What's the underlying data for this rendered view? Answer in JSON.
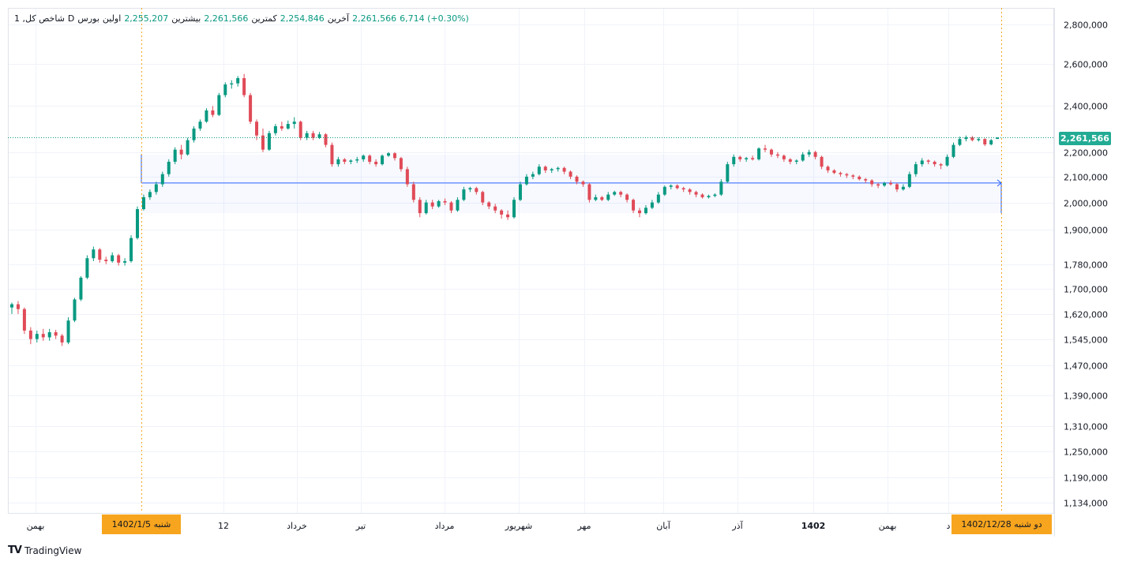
{
  "legend": {
    "symbol": "1 ,شاخص کل",
    "interval": "D",
    "exchange": "بورس",
    "open_label": "اولین",
    "open": "2,255,207",
    "high_label": "بیشترین",
    "high": "2,261,566",
    "low_label": "کمترین",
    "low": "2,254,846",
    "close_label": "آخرین",
    "close": "2,261,566",
    "change": "6,714 (+0.30%)"
  },
  "colors": {
    "up": "#089981",
    "down": "#e04a57",
    "measure": "#2962ff",
    "badge_price": "#22ab94",
    "badge_date": "#f7a51e"
  },
  "last_price_label": "2,261,566",
  "range_start_badge": "1402/1/5  شنبه",
  "range_end_badge": "1402/12/28  دو شنبه",
  "brand": "TradingView",
  "chart_data": {
    "type": "candlestick",
    "y_scale": "log",
    "ylim": [
      1080000,
      2880000
    ],
    "y_ticks": [
      2800000,
      2600000,
      2400000,
      2200000,
      2100000,
      2000000,
      1900000,
      1780000,
      1700000,
      1620000,
      1545000,
      1470000,
      1390000,
      1310000,
      1250000,
      1190000,
      1134000
    ],
    "y_tick_labels": [
      "2,800,000",
      "2,600,000",
      "2,400,000",
      "2,200,000",
      "2,100,000",
      "2,000,000",
      "1,900,000",
      "1,780,000",
      "1,700,000",
      "1,620,000",
      "1,545,000",
      "1,470,000",
      "1,390,000",
      "1,310,000",
      "1,250,000",
      "1,190,000",
      "1,134,000"
    ],
    "x_labels": [
      "بهمن",
      "12",
      "خرداد",
      "تیر",
      "مرداد",
      "شهریور",
      "مهر",
      "آبان",
      "آذر",
      "1402",
      "بهمن",
      "د"
    ],
    "last_price": 2261566,
    "measure_range": {
      "start": "1402/1/5",
      "end": "1402/12/28",
      "level": 2075000,
      "band_top": 2190000,
      "band_bottom": 1960000
    },
    "series": [
      [
        1640000,
        1655000,
        1620000,
        1650000
      ],
      [
        1650000,
        1660000,
        1620000,
        1635000
      ],
      [
        1635000,
        1640000,
        1560000,
        1570000
      ],
      [
        1570000,
        1580000,
        1530000,
        1545000
      ],
      [
        1545000,
        1570000,
        1535000,
        1560000
      ],
      [
        1560000,
        1575000,
        1540000,
        1550000
      ],
      [
        1550000,
        1575000,
        1540000,
        1565000
      ],
      [
        1565000,
        1572000,
        1545000,
        1555000
      ],
      [
        1555000,
        1560000,
        1525000,
        1535000
      ],
      [
        1535000,
        1610000,
        1530000,
        1600000
      ],
      [
        1600000,
        1670000,
        1595000,
        1665000
      ],
      [
        1665000,
        1740000,
        1660000,
        1735000
      ],
      [
        1735000,
        1810000,
        1730000,
        1800000
      ],
      [
        1800000,
        1840000,
        1790000,
        1830000
      ],
      [
        1830000,
        1835000,
        1785000,
        1795000
      ],
      [
        1795000,
        1805000,
        1780000,
        1790000
      ],
      [
        1790000,
        1820000,
        1785000,
        1810000
      ],
      [
        1810000,
        1815000,
        1775000,
        1785000
      ],
      [
        1785000,
        1800000,
        1775000,
        1790000
      ],
      [
        1790000,
        1880000,
        1785000,
        1870000
      ],
      [
        1870000,
        1985000,
        1865000,
        1975000
      ],
      [
        1975000,
        2030000,
        1970000,
        2020000
      ],
      [
        2020000,
        2050000,
        2010000,
        2040000
      ],
      [
        2040000,
        2080000,
        2030000,
        2070000
      ],
      [
        2070000,
        2120000,
        2060000,
        2110000
      ],
      [
        2110000,
        2170000,
        2100000,
        2160000
      ],
      [
        2160000,
        2220000,
        2150000,
        2210000
      ],
      [
        2210000,
        2230000,
        2170000,
        2190000
      ],
      [
        2190000,
        2260000,
        2185000,
        2250000
      ],
      [
        2250000,
        2310000,
        2240000,
        2300000
      ],
      [
        2300000,
        2340000,
        2290000,
        2330000
      ],
      [
        2330000,
        2390000,
        2325000,
        2380000
      ],
      [
        2380000,
        2400000,
        2350000,
        2360000
      ],
      [
        2360000,
        2460000,
        2355000,
        2450000
      ],
      [
        2450000,
        2510000,
        2440000,
        2500000
      ],
      [
        2500000,
        2520000,
        2480000,
        2505000
      ],
      [
        2505000,
        2540000,
        2490000,
        2530000
      ],
      [
        2530000,
        2550000,
        2440000,
        2450000
      ],
      [
        2450000,
        2460000,
        2320000,
        2330000
      ],
      [
        2330000,
        2340000,
        2250000,
        2270000
      ],
      [
        2270000,
        2300000,
        2200000,
        2210000
      ],
      [
        2210000,
        2290000,
        2205000,
        2280000
      ],
      [
        2280000,
        2320000,
        2270000,
        2310000
      ],
      [
        2310000,
        2330000,
        2290000,
        2300000
      ],
      [
        2300000,
        2335000,
        2295000,
        2320000
      ],
      [
        2320000,
        2350000,
        2300000,
        2330000
      ],
      [
        2330000,
        2335000,
        2250000,
        2260000
      ],
      [
        2260000,
        2290000,
        2250000,
        2280000
      ],
      [
        2280000,
        2290000,
        2250000,
        2260000
      ],
      [
        2260000,
        2285000,
        2255000,
        2275000
      ],
      [
        2275000,
        2280000,
        2220000,
        2230000
      ],
      [
        2230000,
        2240000,
        2140000,
        2150000
      ],
      [
        2150000,
        2180000,
        2140000,
        2170000
      ],
      [
        2170000,
        2175000,
        2150000,
        2160000
      ],
      [
        2160000,
        2170000,
        2150000,
        2165000
      ],
      [
        2165000,
        2180000,
        2155000,
        2170000
      ],
      [
        2170000,
        2190000,
        2160000,
        2185000
      ],
      [
        2185000,
        2190000,
        2150000,
        2160000
      ],
      [
        2160000,
        2170000,
        2140000,
        2150000
      ],
      [
        2150000,
        2190000,
        2145000,
        2185000
      ],
      [
        2185000,
        2200000,
        2180000,
        2195000
      ],
      [
        2195000,
        2200000,
        2165000,
        2175000
      ],
      [
        2175000,
        2180000,
        2120000,
        2130000
      ],
      [
        2130000,
        2140000,
        2060000,
        2070000
      ],
      [
        2070000,
        2080000,
        2000000,
        2010000
      ],
      [
        2010000,
        2020000,
        1945000,
        1960000
      ],
      [
        1960000,
        2010000,
        1955000,
        2000000
      ],
      [
        2000000,
        2010000,
        1975000,
        1985000
      ],
      [
        1985000,
        2010000,
        1980000,
        2005000
      ],
      [
        2005000,
        2015000,
        1990000,
        2000000
      ],
      [
        2000000,
        2005000,
        1960000,
        1970000
      ],
      [
        1970000,
        2020000,
        1965000,
        2010000
      ],
      [
        2010000,
        2060000,
        2005000,
        2050000
      ],
      [
        2050000,
        2060000,
        2040000,
        2055000
      ],
      [
        2055000,
        2060000,
        2030000,
        2040000
      ],
      [
        2040000,
        2045000,
        1990000,
        2000000
      ],
      [
        2000000,
        2005000,
        1975000,
        1985000
      ],
      [
        1985000,
        1995000,
        1960000,
        1970000
      ],
      [
        1970000,
        1975000,
        1940000,
        1955000
      ],
      [
        1955000,
        1970000,
        1935000,
        1945000
      ],
      [
        1945000,
        2020000,
        1940000,
        2010000
      ],
      [
        2010000,
        2080000,
        2005000,
        2070000
      ],
      [
        2070000,
        2110000,
        2065000,
        2100000
      ],
      [
        2100000,
        2120000,
        2090000,
        2110000
      ],
      [
        2110000,
        2150000,
        2105000,
        2140000
      ],
      [
        2140000,
        2145000,
        2115000,
        2125000
      ],
      [
        2125000,
        2135000,
        2115000,
        2130000
      ],
      [
        2130000,
        2140000,
        2120000,
        2135000
      ],
      [
        2135000,
        2140000,
        2110000,
        2120000
      ],
      [
        2120000,
        2125000,
        2090000,
        2100000
      ],
      [
        2100000,
        2105000,
        2070000,
        2080000
      ],
      [
        2080000,
        2085000,
        2060000,
        2070000
      ],
      [
        2070000,
        2075000,
        2000000,
        2010000
      ],
      [
        2010000,
        2030000,
        2005000,
        2020000
      ],
      [
        2020000,
        2025000,
        2005000,
        2010000
      ],
      [
        2010000,
        2040000,
        2005000,
        2030000
      ],
      [
        2030000,
        2045000,
        2025000,
        2040000
      ],
      [
        2040000,
        2045000,
        2020000,
        2030000
      ],
      [
        2030000,
        2035000,
        2000000,
        2010000
      ],
      [
        2010000,
        2015000,
        1960000,
        1970000
      ],
      [
        1970000,
        1980000,
        1945000,
        1960000
      ],
      [
        1960000,
        1990000,
        1955000,
        1980000
      ],
      [
        1980000,
        2010000,
        1975000,
        2000000
      ],
      [
        2000000,
        2040000,
        1995000,
        2030000
      ],
      [
        2030000,
        2065000,
        2025000,
        2060000
      ],
      [
        2060000,
        2070000,
        2050000,
        2065000
      ],
      [
        2065000,
        2070000,
        2050000,
        2055000
      ],
      [
        2055000,
        2060000,
        2040000,
        2050000
      ],
      [
        2050000,
        2055000,
        2030000,
        2040000
      ],
      [
        2040000,
        2045000,
        2020000,
        2030000
      ],
      [
        2030000,
        2035000,
        2015000,
        2020000
      ],
      [
        2020000,
        2030000,
        2015000,
        2025000
      ],
      [
        2025000,
        2035000,
        2020000,
        2030000
      ],
      [
        2030000,
        2090000,
        2025000,
        2080000
      ],
      [
        2080000,
        2160000,
        2075000,
        2150000
      ],
      [
        2150000,
        2190000,
        2140000,
        2180000
      ],
      [
        2180000,
        2185000,
        2160000,
        2170000
      ],
      [
        2170000,
        2180000,
        2160000,
        2175000
      ],
      [
        2175000,
        2185000,
        2165000,
        2170000
      ],
      [
        2170000,
        2220000,
        2165000,
        2215000
      ],
      [
        2215000,
        2230000,
        2200000,
        2210000
      ],
      [
        2210000,
        2215000,
        2180000,
        2190000
      ],
      [
        2190000,
        2200000,
        2175000,
        2185000
      ],
      [
        2185000,
        2190000,
        2160000,
        2170000
      ],
      [
        2170000,
        2175000,
        2150000,
        2160000
      ],
      [
        2160000,
        2170000,
        2150000,
        2165000
      ],
      [
        2165000,
        2200000,
        2160000,
        2190000
      ],
      [
        2190000,
        2210000,
        2180000,
        2200000
      ],
      [
        2200000,
        2205000,
        2170000,
        2180000
      ],
      [
        2180000,
        2185000,
        2130000,
        2140000
      ],
      [
        2140000,
        2145000,
        2115000,
        2125000
      ],
      [
        2125000,
        2130000,
        2110000,
        2115000
      ],
      [
        2115000,
        2120000,
        2100000,
        2110000
      ],
      [
        2110000,
        2115000,
        2095000,
        2105000
      ],
      [
        2105000,
        2110000,
        2090000,
        2100000
      ],
      [
        2100000,
        2105000,
        2085000,
        2090000
      ],
      [
        2090000,
        2095000,
        2075000,
        2085000
      ],
      [
        2085000,
        2090000,
        2060000,
        2070000
      ],
      [
        2070000,
        2075000,
        2055000,
        2065000
      ],
      [
        2065000,
        2080000,
        2060000,
        2075000
      ],
      [
        2075000,
        2085000,
        2065000,
        2070000
      ],
      [
        2070000,
        2075000,
        2040000,
        2050000
      ],
      [
        2050000,
        2070000,
        2045000,
        2060000
      ],
      [
        2060000,
        2120000,
        2055000,
        2110000
      ],
      [
        2110000,
        2160000,
        2100000,
        2150000
      ],
      [
        2150000,
        2175000,
        2140000,
        2165000
      ],
      [
        2165000,
        2170000,
        2150000,
        2160000
      ],
      [
        2160000,
        2165000,
        2140000,
        2150000
      ],
      [
        2150000,
        2155000,
        2130000,
        2145000
      ],
      [
        2145000,
        2190000,
        2140000,
        2180000
      ],
      [
        2180000,
        2240000,
        2175000,
        2230000
      ],
      [
        2230000,
        2265000,
        2225000,
        2255000
      ],
      [
        2255000,
        2270000,
        2245000,
        2262000
      ],
      [
        2262000,
        2268000,
        2245000,
        2250000
      ],
      [
        2250000,
        2262000,
        2244000,
        2255000
      ],
      [
        2255000,
        2258000,
        2225000,
        2232000
      ],
      [
        2232000,
        2255000,
        2228000,
        2250000
      ],
      [
        2255207,
        2261566,
        2254846,
        2261566
      ]
    ]
  }
}
